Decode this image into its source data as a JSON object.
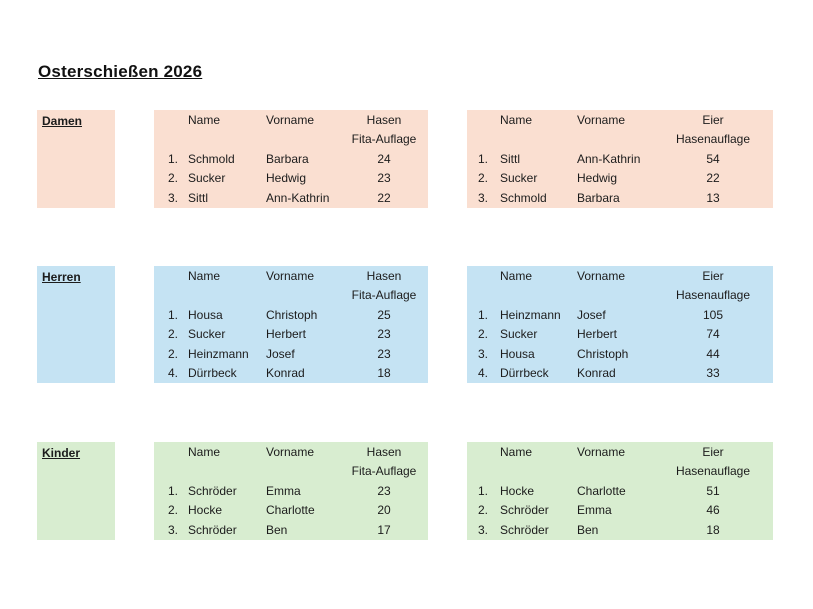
{
  "title": "Osterschießen 2026",
  "sections": [
    {
      "label": "Damen",
      "bg": "#fadfd1",
      "left": {
        "header": {
          "name": "Name",
          "vorname": "Vorname",
          "score1": "Hasen",
          "score2": "Fita-Auflage"
        },
        "rows": [
          {
            "rank": "1.",
            "name": "Schmold",
            "vorname": "Barbara",
            "score": "24"
          },
          {
            "rank": "2.",
            "name": "Sucker",
            "vorname": "Hedwig",
            "score": "23"
          },
          {
            "rank": "3.",
            "name": "Sittl",
            "vorname": "Ann-Kathrin",
            "score": "22"
          }
        ]
      },
      "right": {
        "header": {
          "name": "Name",
          "vorname": "Vorname",
          "score1": "Eier",
          "score2": "Hasenauflage"
        },
        "rows": [
          {
            "rank": "1.",
            "name": "Sittl",
            "vorname": "Ann-Kathrin",
            "score": "54"
          },
          {
            "rank": "2.",
            "name": "Sucker",
            "vorname": "Hedwig",
            "score": "22"
          },
          {
            "rank": "3.",
            "name": "Schmold",
            "vorname": "Barbara",
            "score": "13"
          }
        ]
      }
    },
    {
      "label": "Herren",
      "bg": "#c5e3f3",
      "left": {
        "header": {
          "name": "Name",
          "vorname": "Vorname",
          "score1": "Hasen",
          "score2": "Fita-Auflage"
        },
        "rows": [
          {
            "rank": "1.",
            "name": "Housa",
            "vorname": "Christoph",
            "score": "25"
          },
          {
            "rank": "2.",
            "name": "Sucker",
            "vorname": "Herbert",
            "score": "23"
          },
          {
            "rank": "2.",
            "name": "Heinzmann",
            "vorname": "Josef",
            "score": "23"
          },
          {
            "rank": "4.",
            "name": "Dürrbeck",
            "vorname": "Konrad",
            "score": "18"
          }
        ]
      },
      "right": {
        "header": {
          "name": "Name",
          "vorname": "Vorname",
          "score1": "Eier",
          "score2": "Hasenauflage"
        },
        "rows": [
          {
            "rank": "1.",
            "name": "Heinzmann",
            "vorname": "Josef",
            "score": "105"
          },
          {
            "rank": "2.",
            "name": "Sucker",
            "vorname": "Herbert",
            "score": "74"
          },
          {
            "rank": "3.",
            "name": "Housa",
            "vorname": "Christoph",
            "score": "44"
          },
          {
            "rank": "4.",
            "name": "Dürrbeck",
            "vorname": "Konrad",
            "score": "33"
          }
        ]
      }
    },
    {
      "label": "Kinder",
      "bg": "#d8edd0",
      "left": {
        "header": {
          "name": "Name",
          "vorname": "Vorname",
          "score1": "Hasen",
          "score2": "Fita-Auflage"
        },
        "rows": [
          {
            "rank": "1.",
            "name": "Schröder",
            "vorname": "Emma",
            "score": "23"
          },
          {
            "rank": "2.",
            "name": "Hocke",
            "vorname": "Charlotte",
            "score": "20"
          },
          {
            "rank": "3.",
            "name": "Schröder",
            "vorname": "Ben",
            "score": "17"
          }
        ]
      },
      "right": {
        "header": {
          "name": "Name",
          "vorname": "Vorname",
          "score1": "Eier",
          "score2": "Hasenauflage"
        },
        "rows": [
          {
            "rank": "1.",
            "name": "Hocke",
            "vorname": "Charlotte",
            "score": "51"
          },
          {
            "rank": "2.",
            "name": "Schröder",
            "vorname": "Emma",
            "score": "46"
          },
          {
            "rank": "3.",
            "name": "Schröder",
            "vorname": "Ben",
            "score": "18"
          }
        ]
      }
    }
  ]
}
